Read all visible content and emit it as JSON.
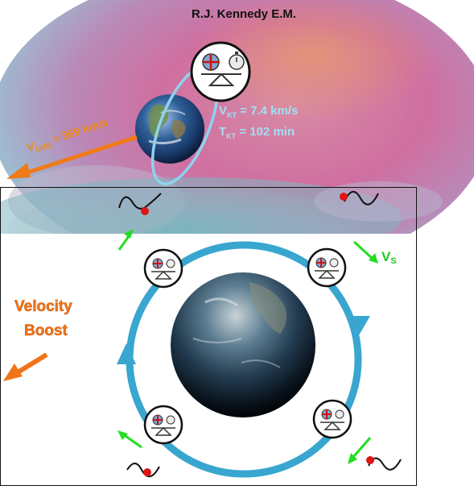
{
  "header": {
    "title": "R.J. Kennedy  E.M."
  },
  "orbit_info": {
    "velocity_symbol": "V",
    "velocity_subscript": "KT",
    "velocity_value": " = 7.4 km/s",
    "period_symbol": "T",
    "period_subscript": "KT",
    "period_value": " = 102 min"
  },
  "cmb": {
    "symbol": "V",
    "subscript": "CMB",
    "value": " = 369 km/s"
  },
  "boost": {
    "line1": "Velocity",
    "line2": "Boost"
  },
  "satellite_velocity": {
    "symbol": "V",
    "subscript": "S"
  },
  "colors": {
    "orbit": "#3aa6d0",
    "cmb_arrow": "#f07a18",
    "green_arrow": "#22dd22",
    "red_dot": "#e01414",
    "lower_panel_border": "#111111"
  }
}
